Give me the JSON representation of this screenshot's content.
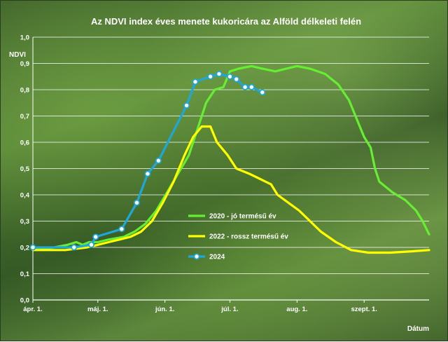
{
  "chart_data": {
    "type": "line",
    "title": "Az NDVI index éves menete kukoricára az Alföld délkeleti felén",
    "ylabel": "NDVI",
    "xlabel": "Dátum",
    "ylim": [
      0,
      1.0
    ],
    "yticks": [
      "0,0",
      "0,1",
      "0,2",
      "0,3",
      "0,4",
      "0,5",
      "0,6",
      "0,7",
      "0,8",
      "0,9",
      "1,0"
    ],
    "xlim": [
      0,
      183
    ],
    "xticks": [
      {
        "label": "ápr. 1.",
        "day": 0
      },
      {
        "label": "máj. 1.",
        "day": 30
      },
      {
        "label": "jún. 1.",
        "day": 61
      },
      {
        "label": "júl. 1.",
        "day": 91
      },
      {
        "label": "aug. 1.",
        "day": 122
      },
      {
        "label": "szept. 1.",
        "day": 153
      }
    ],
    "grid": true,
    "legend_position": "bottom-center",
    "series": [
      {
        "name": "2020 - jó termésű év",
        "color": "#66ee33",
        "markers": false,
        "points": [
          [
            0,
            0.19
          ],
          [
            10,
            0.2
          ],
          [
            16,
            0.21
          ],
          [
            20,
            0.22
          ],
          [
            23,
            0.21
          ],
          [
            26,
            0.22
          ],
          [
            30,
            0.22
          ],
          [
            35,
            0.23
          ],
          [
            42,
            0.24
          ],
          [
            47,
            0.26
          ],
          [
            52,
            0.29
          ],
          [
            57,
            0.34
          ],
          [
            62,
            0.41
          ],
          [
            67,
            0.48
          ],
          [
            72,
            0.55
          ],
          [
            76,
            0.65
          ],
          [
            80,
            0.75
          ],
          [
            84,
            0.8
          ],
          [
            88,
            0.81
          ],
          [
            91,
            0.87
          ],
          [
            95,
            0.88
          ],
          [
            101,
            0.89
          ],
          [
            106,
            0.88
          ],
          [
            112,
            0.87
          ],
          [
            117,
            0.88
          ],
          [
            122,
            0.89
          ],
          [
            128,
            0.88
          ],
          [
            135,
            0.86
          ],
          [
            141,
            0.82
          ],
          [
            146,
            0.76
          ],
          [
            150,
            0.68
          ],
          [
            153,
            0.62
          ],
          [
            156,
            0.58
          ],
          [
            158,
            0.5
          ],
          [
            160,
            0.45
          ],
          [
            166,
            0.41
          ],
          [
            172,
            0.38
          ],
          [
            177,
            0.34
          ],
          [
            180,
            0.3
          ],
          [
            183,
            0.25
          ]
        ]
      },
      {
        "name": "2022 - rossz termésű év",
        "color": "#ffff00",
        "markers": false,
        "points": [
          [
            0,
            0.19
          ],
          [
            15,
            0.19
          ],
          [
            25,
            0.2
          ],
          [
            30,
            0.21
          ],
          [
            35,
            0.22
          ],
          [
            40,
            0.23
          ],
          [
            45,
            0.24
          ],
          [
            50,
            0.26
          ],
          [
            55,
            0.3
          ],
          [
            60,
            0.37
          ],
          [
            65,
            0.45
          ],
          [
            70,
            0.55
          ],
          [
            74,
            0.62
          ],
          [
            78,
            0.66
          ],
          [
            82,
            0.66
          ],
          [
            85,
            0.6
          ],
          [
            90,
            0.55
          ],
          [
            94,
            0.5
          ],
          [
            100,
            0.48
          ],
          [
            105,
            0.46
          ],
          [
            110,
            0.44
          ],
          [
            113,
            0.4
          ],
          [
            118,
            0.37
          ],
          [
            123,
            0.34
          ],
          [
            128,
            0.3
          ],
          [
            133,
            0.26
          ],
          [
            140,
            0.22
          ],
          [
            147,
            0.19
          ],
          [
            155,
            0.18
          ],
          [
            165,
            0.18
          ],
          [
            175,
            0.185
          ],
          [
            183,
            0.19
          ]
        ]
      },
      {
        "name": "2024",
        "color": "#1ea7d8",
        "markers": true,
        "points": [
          [
            0,
            0.2
          ],
          [
            19,
            0.2
          ],
          [
            27,
            0.21
          ],
          [
            29,
            0.24
          ],
          [
            41,
            0.27
          ],
          [
            48,
            0.37
          ],
          [
            53,
            0.48
          ],
          [
            58,
            0.53
          ],
          [
            71,
            0.74
          ],
          [
            75,
            0.83
          ],
          [
            82,
            0.85
          ],
          [
            86,
            0.86
          ],
          [
            91,
            0.85
          ],
          [
            94,
            0.84
          ],
          [
            98,
            0.81
          ],
          [
            101,
            0.81
          ],
          [
            106,
            0.79
          ]
        ]
      }
    ]
  }
}
